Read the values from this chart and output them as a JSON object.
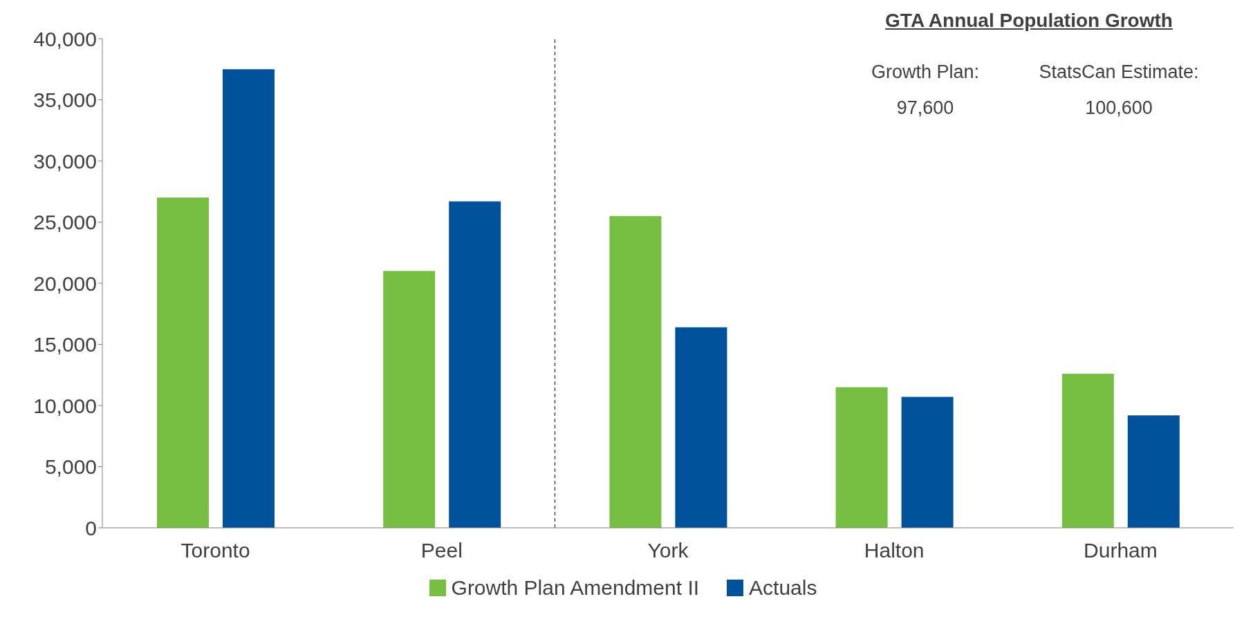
{
  "chart_data": {
    "type": "bar",
    "title": "GTA Annual Population Growth",
    "annotations": [
      "Growth Plan:",
      "97,600",
      "StatsCan Estimate:",
      "100,600"
    ],
    "categories": [
      "Toronto",
      "Peel",
      "York",
      "Halton",
      "Durham"
    ],
    "series": [
      {
        "name": "Growth Plan Amendment II",
        "color": "#76bf43",
        "values": [
          27000,
          21000,
          25500,
          11500,
          12600
        ]
      },
      {
        "name": "Actuals",
        "color": "#00539b",
        "values": [
          37500,
          26700,
          16400,
          10700,
          9200
        ]
      }
    ],
    "ylim": [
      0,
      40000
    ],
    "yticks": [
      {
        "value": 0,
        "label": "0"
      },
      {
        "value": 5000,
        "label": "5,000"
      },
      {
        "value": 10000,
        "label": "10,000"
      },
      {
        "value": 15000,
        "label": "15,000"
      },
      {
        "value": 20000,
        "label": "20,000"
      },
      {
        "value": 25000,
        "label": "25,000"
      },
      {
        "value": 30000,
        "label": "30,000"
      },
      {
        "value": 35000,
        "label": "35,000"
      },
      {
        "value": 40000,
        "label": "40,000"
      }
    ],
    "grid": false,
    "legend": "bottom"
  }
}
